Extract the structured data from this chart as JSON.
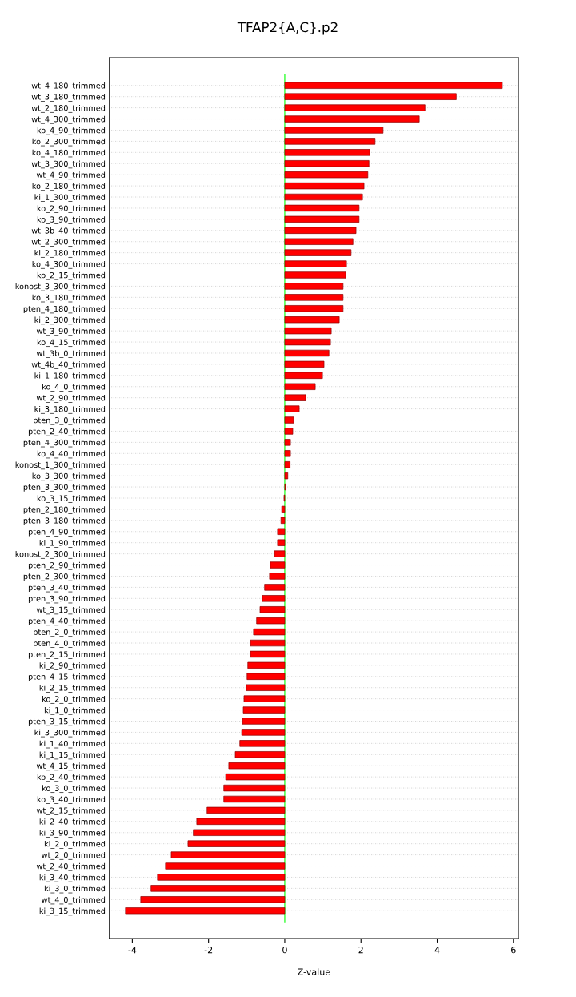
{
  "chart_data": {
    "type": "bar",
    "orientation": "horizontal",
    "title": "TFAP2{A,C}.p2",
    "xlabel": "Z-value",
    "categories": [
      "wt_4_180_trimmed",
      "wt_3_180_trimmed",
      "wt_2_180_trimmed",
      "wt_4_300_trimmed",
      "ko_4_90_trimmed",
      "ko_2_300_trimmed",
      "ko_4_180_trimmed",
      "wt_3_300_trimmed",
      "wt_4_90_trimmed",
      "ko_2_180_trimmed",
      "ki_1_300_trimmed",
      "ko_2_90_trimmed",
      "ko_3_90_trimmed",
      "wt_3b_40_trimmed",
      "wt_2_300_trimmed",
      "ki_2_180_trimmed",
      "ko_4_300_trimmed",
      "ko_2_15_trimmed",
      "konost_3_300_trimmed",
      "ko_3_180_trimmed",
      "pten_4_180_trimmed",
      "ki_2_300_trimmed",
      "wt_3_90_trimmed",
      "ko_4_15_trimmed",
      "wt_3b_0_trimmed",
      "wt_4b_40_trimmed",
      "ki_1_180_trimmed",
      "ko_4_0_trimmed",
      "wt_2_90_trimmed",
      "ki_3_180_trimmed",
      "pten_3_0_trimmed",
      "pten_2_40_trimmed",
      "pten_4_300_trimmed",
      "ko_4_40_trimmed",
      "konost_1_300_trimmed",
      "ko_3_300_trimmed",
      "pten_3_300_trimmed",
      "ko_3_15_trimmed",
      "pten_2_180_trimmed",
      "pten_3_180_trimmed",
      "pten_4_90_trimmed",
      "ki_1_90_trimmed",
      "konost_2_300_trimmed",
      "pten_2_90_trimmed",
      "pten_2_300_trimmed",
      "pten_3_40_trimmed",
      "pten_3_90_trimmed",
      "wt_3_15_trimmed",
      "pten_4_40_trimmed",
      "pten_2_0_trimmed",
      "pten_4_0_trimmed",
      "pten_2_15_trimmed",
      "ki_2_90_trimmed",
      "pten_4_15_trimmed",
      "ki_2_15_trimmed",
      "ko_2_0_trimmed",
      "ki_1_0_trimmed",
      "pten_3_15_trimmed",
      "ki_3_300_trimmed",
      "ki_1_40_trimmed",
      "ki_1_15_trimmed",
      "wt_4_15_trimmed",
      "ko_2_40_trimmed",
      "ko_3_0_trimmed",
      "ko_3_40_trimmed",
      "wt_2_15_trimmed",
      "ki_2_40_trimmed",
      "ki_3_90_trimmed",
      "ki_2_0_trimmed",
      "wt_2_0_trimmed",
      "wt_2_40_trimmed",
      "ki_3_40_trimmed",
      "ki_3_0_trimmed",
      "wt_4_0_trimmed",
      "ki_3_15_trimmed"
    ],
    "values": [
      5.71,
      4.5,
      3.68,
      3.53,
      2.58,
      2.37,
      2.23,
      2.21,
      2.18,
      2.08,
      2.04,
      1.95,
      1.95,
      1.87,
      1.79,
      1.74,
      1.62,
      1.6,
      1.53,
      1.53,
      1.53,
      1.43,
      1.22,
      1.2,
      1.16,
      1.03,
      0.99,
      0.8,
      0.55,
      0.38,
      0.23,
      0.21,
      0.15,
      0.15,
      0.14,
      0.08,
      0.02,
      -0.02,
      -0.08,
      -0.1,
      -0.19,
      -0.19,
      -0.27,
      -0.38,
      -0.4,
      -0.53,
      -0.59,
      -0.65,
      -0.74,
      -0.82,
      -0.9,
      -0.9,
      -0.97,
      -0.99,
      -1.01,
      -1.07,
      -1.09,
      -1.11,
      -1.13,
      -1.18,
      -1.3,
      -1.47,
      -1.55,
      -1.6,
      -1.6,
      -2.04,
      -2.31,
      -2.4,
      -2.54,
      -2.98,
      -3.13,
      -3.34,
      -3.51,
      -3.78,
      -4.18
    ],
    "color": "#ff0000",
    "xlim": [
      -4.6,
      6.13
    ],
    "xticks": [
      -4,
      -2,
      0,
      2,
      4,
      6
    ],
    "ref_lines": [
      {
        "axis": "x",
        "value": 0,
        "color": "#00ff00"
      }
    ],
    "grid": "y",
    "legend": false
  }
}
